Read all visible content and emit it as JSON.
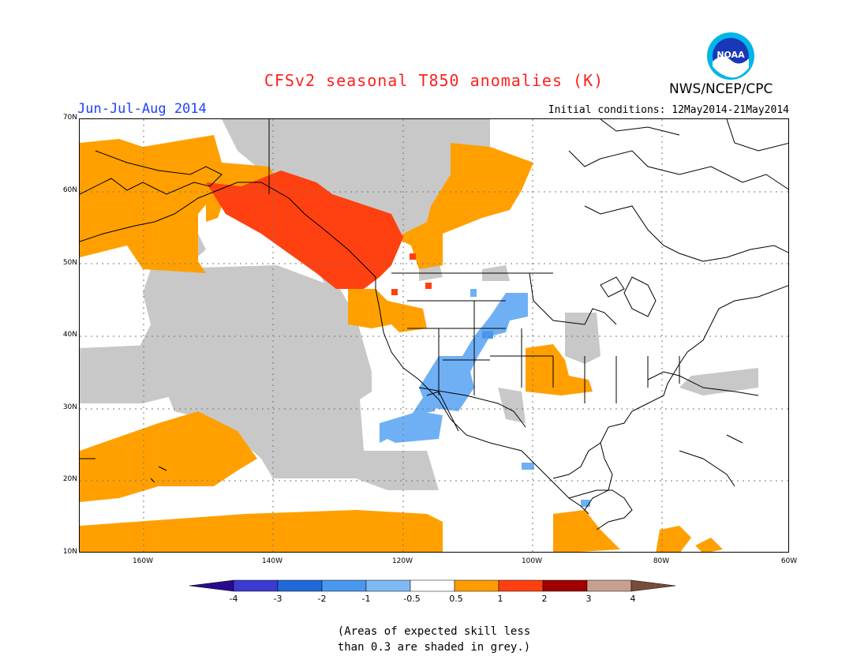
{
  "header": {
    "title": "CFSv2 seasonal T850 anomalies (K)",
    "period": "Jun-Jul-Aug 2014",
    "initial_conditions": "Initial conditions: 12May2014-21May2014",
    "agency": "NWS/NCEP/CPC",
    "logo_text": "NOAA"
  },
  "axes": {
    "lat_labels": [
      "70N",
      "60N",
      "50N",
      "40N",
      "30N",
      "20N",
      "10N"
    ],
    "lon_labels": [
      "160W",
      "140W",
      "120W",
      "100W",
      "80W",
      "60W"
    ]
  },
  "colorbar": {
    "labels": [
      "-4",
      "-3",
      "-2",
      "-1",
      "-0.5",
      "0.5",
      "1",
      "2",
      "3",
      "4"
    ],
    "colors": {
      "lt_m4": "#2a0a8c",
      "m4_m3": "#3b3bd0",
      "m3_m2": "#1f6ad8",
      "m2_m1": "#4a97f0",
      "m1_m05": "#7fbaf5",
      "m05_05": "#ffffff",
      "p05_1": "#ff9c00",
      "p1_2": "#ff4010",
      "p2_3": "#a00000",
      "p3_4": "#c8a090",
      "gt_4": "#7a4a3a"
    }
  },
  "palette": {
    "grey": "#c8c8c8",
    "orange": "#ffa000",
    "red": "#ff4010",
    "blue": "#6fb0f5",
    "coast": "#000000"
  },
  "note": {
    "line1": "(Areas of expected skill less",
    "line2": "than 0.3 are shaded in grey.)"
  }
}
